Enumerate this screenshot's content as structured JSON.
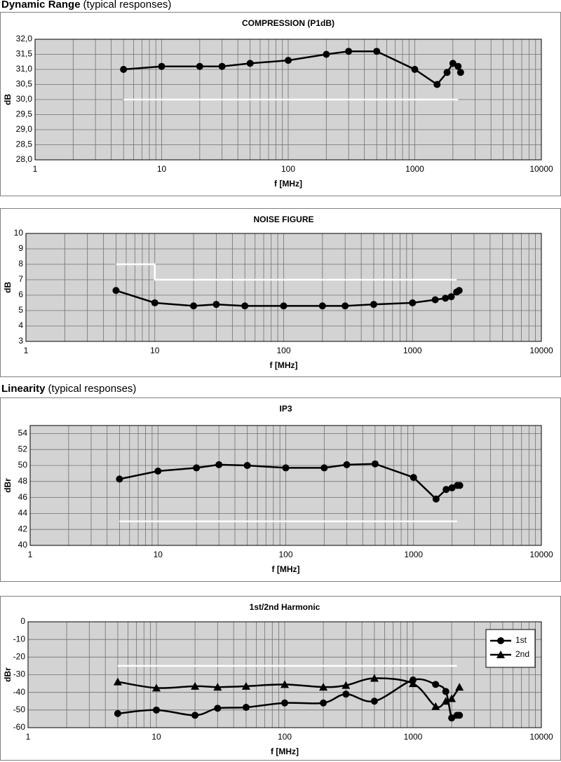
{
  "headings": [
    {
      "title": "Dynamic Range",
      "note": "(typical responses)"
    },
    {
      "title": "Linearity",
      "note": "(typical responses)"
    }
  ],
  "chart_data": [
    {
      "type": "line",
      "title": "COMPRESSION (P1dB)",
      "x_label": "f [MHz]",
      "y_label": "dB",
      "xscale": "log",
      "grid": true,
      "xlim": [
        1,
        10000
      ],
      "xticks": [
        1,
        10,
        100,
        1000,
        10000
      ],
      "ylim": [
        28,
        32
      ],
      "yticks": [
        {
          "value": 28,
          "label": "28,0"
        },
        {
          "value": 28.5,
          "label": "28,5"
        },
        {
          "value": 29,
          "label": "29,0"
        },
        {
          "value": 29.5,
          "label": "29,5"
        },
        {
          "value": 30,
          "label": "30,0"
        },
        {
          "value": 30.5,
          "label": "30,5"
        },
        {
          "value": 31,
          "label": "31,0"
        },
        {
          "value": 31.5,
          "label": "31,5"
        },
        {
          "value": 32,
          "label": "32,0"
        }
      ],
      "series": [
        {
          "color": "#000000",
          "marker": "circle",
          "x": [
            5,
            10,
            20,
            30,
            50,
            100,
            200,
            300,
            500,
            1000,
            1500,
            1800,
            2000,
            2200,
            2300
          ],
          "values": [
            31.0,
            31.1,
            31.1,
            31.1,
            31.2,
            31.3,
            31.5,
            31.6,
            31.6,
            31.0,
            30.5,
            30.9,
            31.2,
            31.1,
            30.9
          ]
        },
        {
          "color": "#ffffff",
          "x": [
            5,
            2200
          ],
          "values": [
            30,
            30
          ]
        }
      ]
    },
    {
      "type": "line",
      "title": "NOISE FIGURE",
      "x_label": "f [MHz]",
      "y_label": "dB",
      "xscale": "log",
      "grid": true,
      "xlim": [
        1,
        10000
      ],
      "xticks": [
        1,
        10,
        100,
        1000,
        10000
      ],
      "ylim": [
        3,
        10
      ],
      "yticks": [
        3,
        4,
        5,
        6,
        7,
        8,
        9,
        10
      ],
      "series": [
        {
          "color": "#000000",
          "marker": "circle",
          "x": [
            5,
            10,
            20,
            30,
            50,
            100,
            200,
            300,
            500,
            1000,
            1500,
            1800,
            2000,
            2200,
            2300
          ],
          "values": [
            6.3,
            5.5,
            5.3,
            5.4,
            5.3,
            5.3,
            5.3,
            5.3,
            5.4,
            5.5,
            5.7,
            5.8,
            5.9,
            6.2,
            6.3
          ]
        },
        {
          "color": "#ffffff",
          "x": [
            5,
            10,
            10,
            2200
          ],
          "values": [
            8,
            8,
            7,
            7
          ]
        }
      ]
    },
    {
      "type": "line",
      "title": "IP3",
      "x_label": "f [MHz]",
      "y_label": "dBr",
      "xscale": "log",
      "grid": true,
      "xlim": [
        1,
        10000
      ],
      "xticks": [
        1,
        10,
        100,
        1000,
        10000
      ],
      "ylim": [
        40,
        55
      ],
      "yticks": [
        40,
        42,
        44,
        46,
        48,
        50,
        52,
        54
      ],
      "series": [
        {
          "color": "#000000",
          "marker": "circle",
          "x": [
            5,
            10,
            20,
            30,
            50,
            100,
            200,
            300,
            500,
            1000,
            1500,
            1800,
            2000,
            2200,
            2300
          ],
          "values": [
            48.3,
            49.3,
            49.7,
            50.1,
            50.0,
            49.7,
            49.7,
            50.1,
            50.2,
            48.5,
            45.8,
            47.0,
            47.2,
            47.5,
            47.5
          ]
        },
        {
          "color": "#ffffff",
          "x": [
            5,
            2200
          ],
          "values": [
            43,
            43
          ]
        }
      ]
    },
    {
      "type": "line",
      "title": "1st/2nd Harmonic",
      "x_label": "f [MHz]",
      "y_label": "dBr",
      "xscale": "log",
      "grid": true,
      "smooth": true,
      "legend": "upper right",
      "xlim": [
        1,
        10000
      ],
      "xticks": [
        1,
        10,
        100,
        1000,
        10000
      ],
      "ylim": [
        -60,
        0
      ],
      "yticks": [
        -60,
        -50,
        -40,
        -30,
        -20,
        -10,
        0
      ],
      "series": [
        {
          "name": "1st",
          "color": "#000000",
          "marker": "circle",
          "x": [
            5,
            10,
            20,
            30,
            50,
            100,
            200,
            300,
            500,
            1000,
            1500,
            1800,
            2000,
            2200,
            2300
          ],
          "values": [
            -52,
            -50,
            -53,
            -49,
            -48.5,
            -46,
            -46,
            -41,
            -45,
            -33,
            -35.5,
            -39.5,
            -54.5,
            -53,
            -53
          ]
        },
        {
          "name": "2nd",
          "color": "#000000",
          "marker": "triangle",
          "x": [
            5,
            10,
            20,
            30,
            50,
            100,
            200,
            300,
            500,
            1000,
            1500,
            1800,
            2000,
            2300
          ],
          "values": [
            -34,
            -37.5,
            -36.5,
            -37,
            -36.5,
            -35.5,
            -37,
            -36,
            -32,
            -35,
            -48,
            -45,
            -43.5,
            -37
          ]
        },
        {
          "color": "#ffffff",
          "x": [
            5,
            2200
          ],
          "values": [
            -25,
            -25
          ]
        }
      ]
    }
  ]
}
